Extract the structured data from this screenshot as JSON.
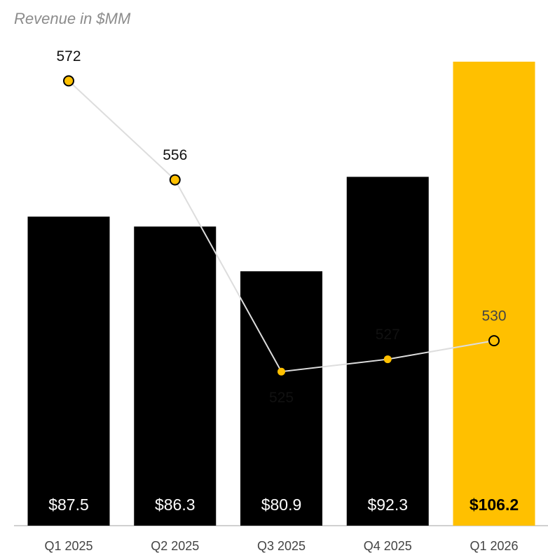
{
  "chart_data": {
    "type": "bar",
    "title": "Revenue in $MM",
    "categories": [
      "Q1 2025",
      "Q2 2025",
      "Q3 2025",
      "Q4 2025",
      "Q1 2026"
    ],
    "series": [
      {
        "type": "bar",
        "colors": [
          "#000000",
          "#000000",
          "#000000",
          "#000000",
          "#FFC000"
        ],
        "values": [
          87.5,
          86.3,
          80.9,
          92.3,
          106.2
        ],
        "value_labels": [
          "$87.5",
          "$86.3",
          "$80.9",
          "$92.3",
          "$106.2"
        ]
      },
      {
        "type": "line",
        "axis": "y2",
        "color": "#FFC000",
        "line_color": "#dddddd",
        "values": [
          572,
          556,
          525,
          527,
          530
        ]
      }
    ],
    "ylim": [
      50.2,
      106.2
    ],
    "y2lim": [
      500.1,
      575.1
    ]
  }
}
